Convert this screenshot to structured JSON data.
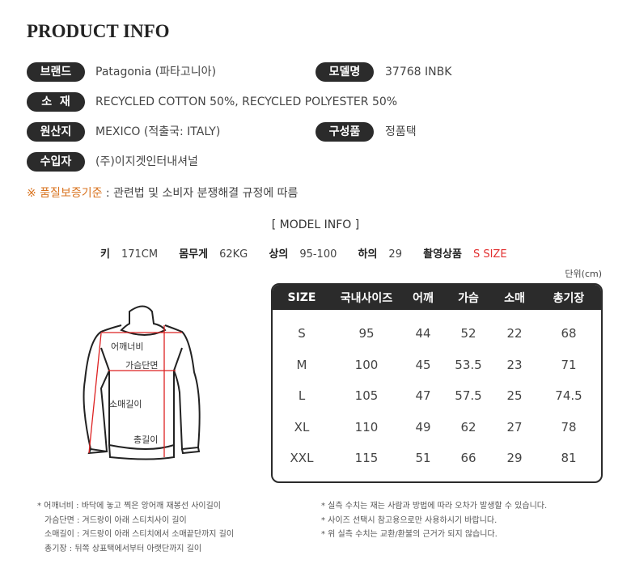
{
  "title": "PRODUCT INFO",
  "info": {
    "brand": {
      "label": "브랜드",
      "value": "Patagonia (파타고니아)"
    },
    "model": {
      "label": "모델명",
      "value": "37768 INBK"
    },
    "material": {
      "label": "소  재",
      "value": "RECYCLED COTTON 50%, RECYCLED POLYESTER 50%"
    },
    "origin": {
      "label": "원산지",
      "value": "MEXICO (적출국: ITALY)"
    },
    "components": {
      "label": "구성품",
      "value": "정품택"
    },
    "importer": {
      "label": "수입자",
      "value": "(주)이지겟인터내셔널"
    }
  },
  "quality": {
    "label": "※ 품질보증기준",
    "value": " : 관련법 및 소비자 분쟁해결 규정에 따름"
  },
  "model_info": {
    "title": "[ MODEL INFO ]",
    "height_label": "키",
    "height": "171CM",
    "weight_label": "몸무게",
    "weight": "62KG",
    "top_label": "상의",
    "top": "95-100",
    "bottom_label": "하의",
    "bottom": "29",
    "worn_label": "촬영상품",
    "worn": "S SIZE"
  },
  "unit": "단위(cm)",
  "diagram": {
    "shoulder": "어깨너비",
    "chest": "가슴단면",
    "sleeve": "소매길이",
    "length": "총길이"
  },
  "size_table": {
    "headers": [
      "SIZE",
      "국내사이즈",
      "어깨",
      "가슴",
      "소매",
      "총기장"
    ],
    "rows": [
      [
        "S",
        "95",
        "44",
        "52",
        "22",
        "68"
      ],
      [
        "M",
        "100",
        "45",
        "53.5",
        "23",
        "71"
      ],
      [
        "L",
        "105",
        "47",
        "57.5",
        "25",
        "74.5"
      ],
      [
        "XL",
        "110",
        "49",
        "62",
        "27",
        "78"
      ],
      [
        "XXL",
        "115",
        "51",
        "66",
        "29",
        "81"
      ]
    ]
  },
  "notes_left": [
    "* 어깨너비 : 바닥에 놓고 찍은 앙어깨 재봉선 사이길이",
    "가슴단면 : 겨드랑이 아래 스티치사이 길이",
    "소매길이 : 겨드랑이 아래 스티치에서 소매끝단까지 길이",
    "총기장 : 뒤쪽 상표택에서부터 아랫단까지 길이"
  ],
  "notes_right": [
    "* 실측 수치는 재는 사람과 방법에 따라 오차가 발생할 수 있습니다.",
    "* 사이즈 선택시 참고용으로만 사용하시기 바랍니다.",
    "* 위 실측 수치는 교환/환불의 근거가 되지 않습니다."
  ],
  "colors": {
    "pill": "#2b2b2b",
    "accent_orange": "#d9731f",
    "accent_red": "#e23030"
  }
}
